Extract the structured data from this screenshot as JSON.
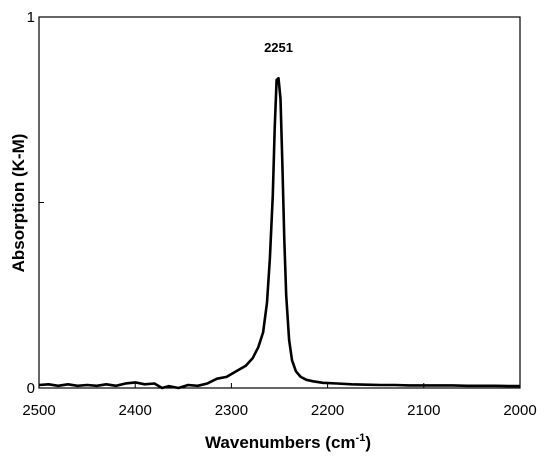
{
  "chart_data": {
    "type": "line",
    "title": "",
    "xlabel": "Wavenumbers (cm",
    "xlabel_superscript": "-1",
    "xlabel_suffix": ")",
    "ylabel": "Absorption (K-M)",
    "xlim": [
      2500,
      2000
    ],
    "ylim": [
      0,
      1
    ],
    "x_reversed": true,
    "grid": false,
    "legend": "none",
    "x_ticks": [
      2500,
      2400,
      2300,
      2200,
      2100,
      2000
    ],
    "x_tick_labels": [
      "2500",
      "2400",
      "2300",
      "2200",
      "2100",
      "2000"
    ],
    "y_ticks": [
      0,
      0.5,
      1
    ],
    "y_tick_labels": [
      "0",
      "",
      "1"
    ],
    "annotations": [
      {
        "text": "2251",
        "x": 2251,
        "y": 0.9
      }
    ],
    "line_color": "#000000",
    "series": [
      {
        "x": [
          2500,
          2490,
          2480,
          2470,
          2460,
          2450,
          2440,
          2430,
          2420,
          2410,
          2400,
          2390,
          2380,
          2372,
          2365,
          2355,
          2345,
          2335,
          2325,
          2315,
          2305,
          2295,
          2285,
          2278,
          2272,
          2267,
          2263,
          2260,
          2257,
          2255,
          2253,
          2251,
          2249,
          2247,
          2245,
          2243,
          2240,
          2237,
          2233,
          2228,
          2222,
          2215,
          2205,
          2190,
          2175,
          2160,
          2145,
          2130,
          2115,
          2100,
          2085,
          2070,
          2055,
          2040,
          2025,
          2010,
          2000
        ],
        "y": [
          0.008,
          0.01,
          0.006,
          0.01,
          0.006,
          0.008,
          0.006,
          0.01,
          0.006,
          0.012,
          0.015,
          0.01,
          0.012,
          0.0,
          0.005,
          0.0,
          0.008,
          0.006,
          0.012,
          0.025,
          0.03,
          0.045,
          0.06,
          0.08,
          0.11,
          0.15,
          0.23,
          0.35,
          0.52,
          0.7,
          0.83,
          0.835,
          0.78,
          0.6,
          0.4,
          0.25,
          0.13,
          0.075,
          0.045,
          0.03,
          0.022,
          0.018,
          0.014,
          0.012,
          0.01,
          0.009,
          0.008,
          0.008,
          0.007,
          0.007,
          0.007,
          0.007,
          0.006,
          0.006,
          0.006,
          0.005,
          0.005
        ]
      }
    ]
  }
}
